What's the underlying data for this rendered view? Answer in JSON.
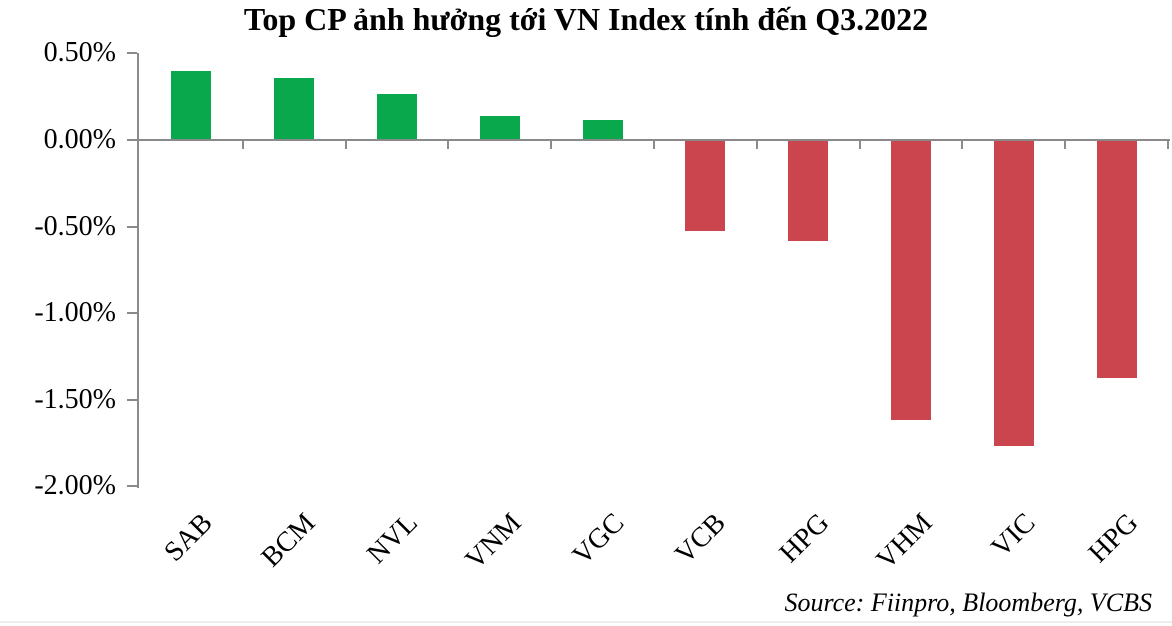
{
  "header": {
    "title": "Top CP ảnh hưởng tới VN Index tính đến Q3.2022"
  },
  "footer": {
    "source": "Source: Fiinpro, Bloomberg, VCBS"
  },
  "chart_data": {
    "type": "bar",
    "title": "Top CP ảnh hưởng tới VN Index tính đến Q3.2022",
    "categories": [
      "SAB",
      "BCM",
      "NVL",
      "VNM",
      "VGC",
      "VCB",
      "HPG",
      "VHM",
      "VIC",
      "HPG"
    ],
    "values": [
      0.39,
      0.35,
      0.26,
      0.13,
      0.11,
      -0.52,
      -0.58,
      -1.61,
      -1.76,
      -1.37
    ],
    "unit": "%",
    "xlabel": "",
    "ylabel": "",
    "y_ticks": [
      "0.50%",
      "0.00%",
      "-0.50%",
      "-1.00%",
      "-1.50%",
      "-2.00%"
    ],
    "y_tick_values": [
      0.5,
      0.0,
      -0.5,
      -1.0,
      -1.5,
      -2.0
    ],
    "ylim": [
      -2.0,
      0.5
    ],
    "grid": false,
    "legend": "none",
    "positive_color": "#0AA84C",
    "negative_color": "#CA454D",
    "axis_color": "#8a8a8a",
    "source_note": "Source: Fiinpro, Bloomberg, VCBS"
  }
}
